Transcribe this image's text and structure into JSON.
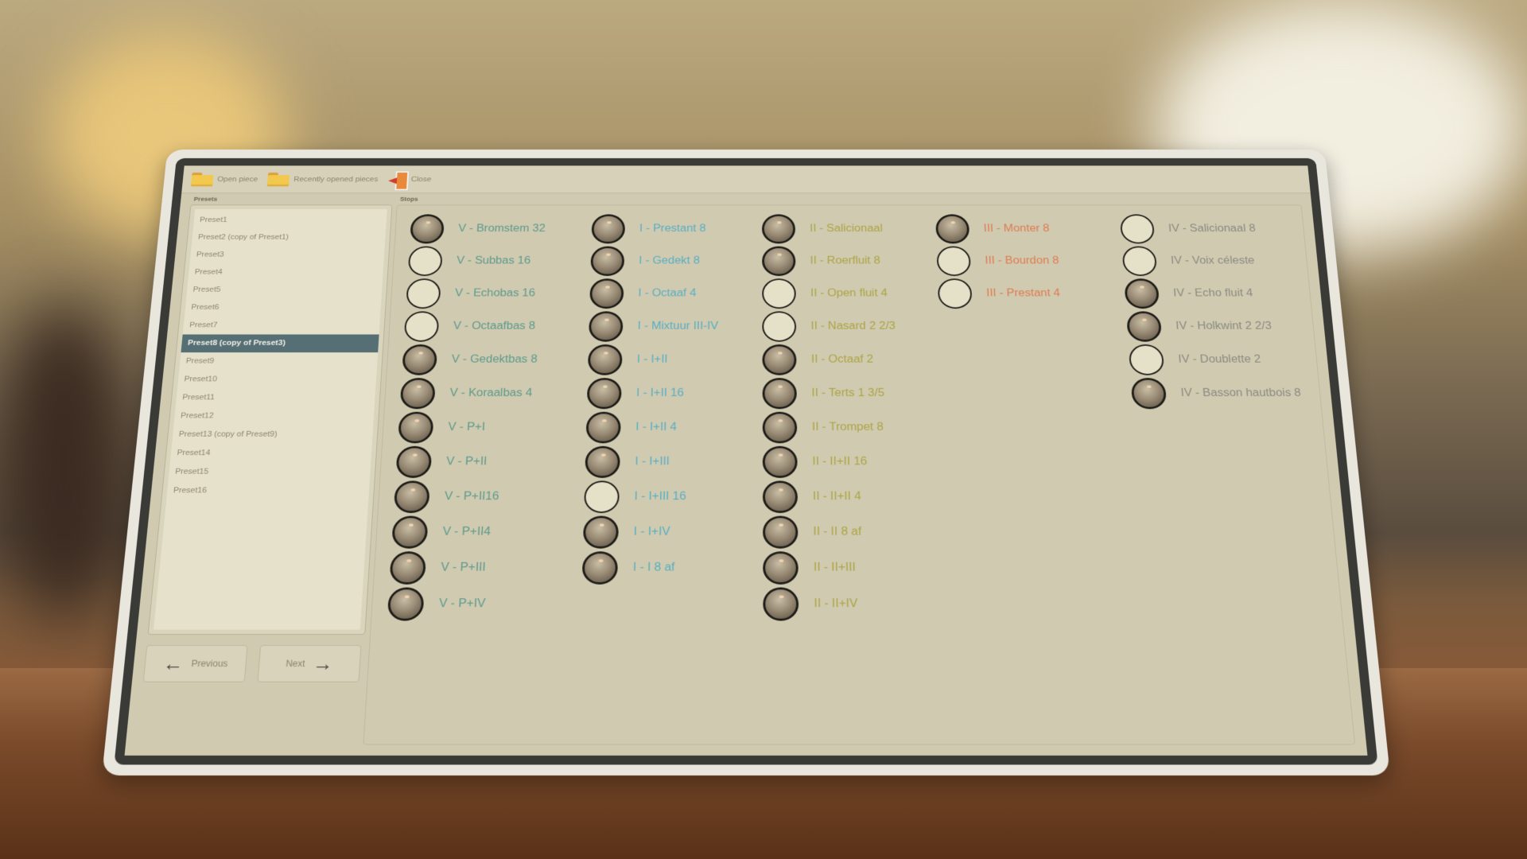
{
  "toolbar": {
    "open_piece": "Open piece",
    "recent": "Recently opened pieces",
    "close": "Close"
  },
  "presets": {
    "label": "Presets",
    "selected_index": 7,
    "items": [
      "Preset1",
      "Preset2 (copy of Preset1)",
      "Preset3",
      "Preset4",
      "Preset5",
      "Preset6",
      "Preset7",
      "Preset8 (copy of Preset3)",
      "Preset9",
      "Preset10",
      "Preset11",
      "Preset12",
      "Preset13 (copy of Preset9)",
      "Preset14",
      "Preset15",
      "Preset16"
    ]
  },
  "stops": {
    "label": "Stops",
    "columns": [
      {
        "color": "#5f9a8c",
        "items": [
          [
            "V - Bromstem 32",
            "dark"
          ],
          [
            "V - Subbas 16",
            "light"
          ],
          [
            "V - Echobas 16",
            "light"
          ],
          [
            "V - Octaafbas 8",
            "light"
          ],
          [
            "V - Gedektbas 8",
            "dark"
          ],
          [
            "V - Koraalbas 4",
            "dark"
          ],
          [
            "V - P+I",
            "dark"
          ],
          [
            "V - P+II",
            "dark"
          ],
          [
            "V - P+II16",
            "dark"
          ],
          [
            "V - P+II4",
            "dark"
          ],
          [
            "V - P+III",
            "dark"
          ],
          [
            "V - P+IV",
            "dark"
          ]
        ]
      },
      {
        "color": "#5aaec4",
        "items": [
          [
            "I - Prestant 8",
            "dark"
          ],
          [
            "I - Gedekt 8",
            "dark"
          ],
          [
            "I - Octaaf 4",
            "dark"
          ],
          [
            "I - Mixtuur III-IV",
            "dark"
          ],
          [
            "I - I+II",
            "dark"
          ],
          [
            "I - I+II 16",
            "dark"
          ],
          [
            "I - I+II 4",
            "dark"
          ],
          [
            "I - I+III",
            "dark"
          ],
          [
            "I - I+III 16",
            "light"
          ],
          [
            "I - I+IV",
            "dark"
          ],
          [
            "I - I 8 af",
            "dark"
          ]
        ]
      },
      {
        "color": "#aea446",
        "items": [
          [
            "II - Salicionaal",
            "dark"
          ],
          [
            "II - Roerfluit 8",
            "dark"
          ],
          [
            "II - Open fluit 4",
            "light"
          ],
          [
            "II - Nasard 2 2/3",
            "light"
          ],
          [
            "II - Octaaf 2",
            "dark"
          ],
          [
            "II - Terts 1 3/5",
            "dark"
          ],
          [
            "II - Trompet 8",
            "dark"
          ],
          [
            "II - II+II 16",
            "dark"
          ],
          [
            "II - II+II 4",
            "dark"
          ],
          [
            "II - II 8 af",
            "dark"
          ],
          [
            "II - II+III",
            "dark"
          ],
          [
            "II - II+IV",
            "dark"
          ]
        ]
      },
      {
        "color": "#e07c52",
        "items": [
          [
            "III - Monter 8",
            "dark"
          ],
          [
            "III - Bourdon 8",
            "light"
          ],
          [
            "III - Prestant 4",
            "light"
          ]
        ]
      },
      {
        "color": "#8c8b82",
        "items": [
          [
            "IV - Salicionaal 8",
            "light"
          ],
          [
            "IV - Voix céleste",
            "light"
          ],
          [
            "IV - Echo fluit 4",
            "dark"
          ],
          [
            "IV - Holkwint 2 2/3",
            "dark"
          ],
          [
            "IV - Doublette 2",
            "light"
          ],
          [
            "IV - Basson hautbois 8",
            "dark"
          ]
        ]
      }
    ]
  },
  "nav": {
    "previous": "Previous",
    "next": "Next"
  }
}
